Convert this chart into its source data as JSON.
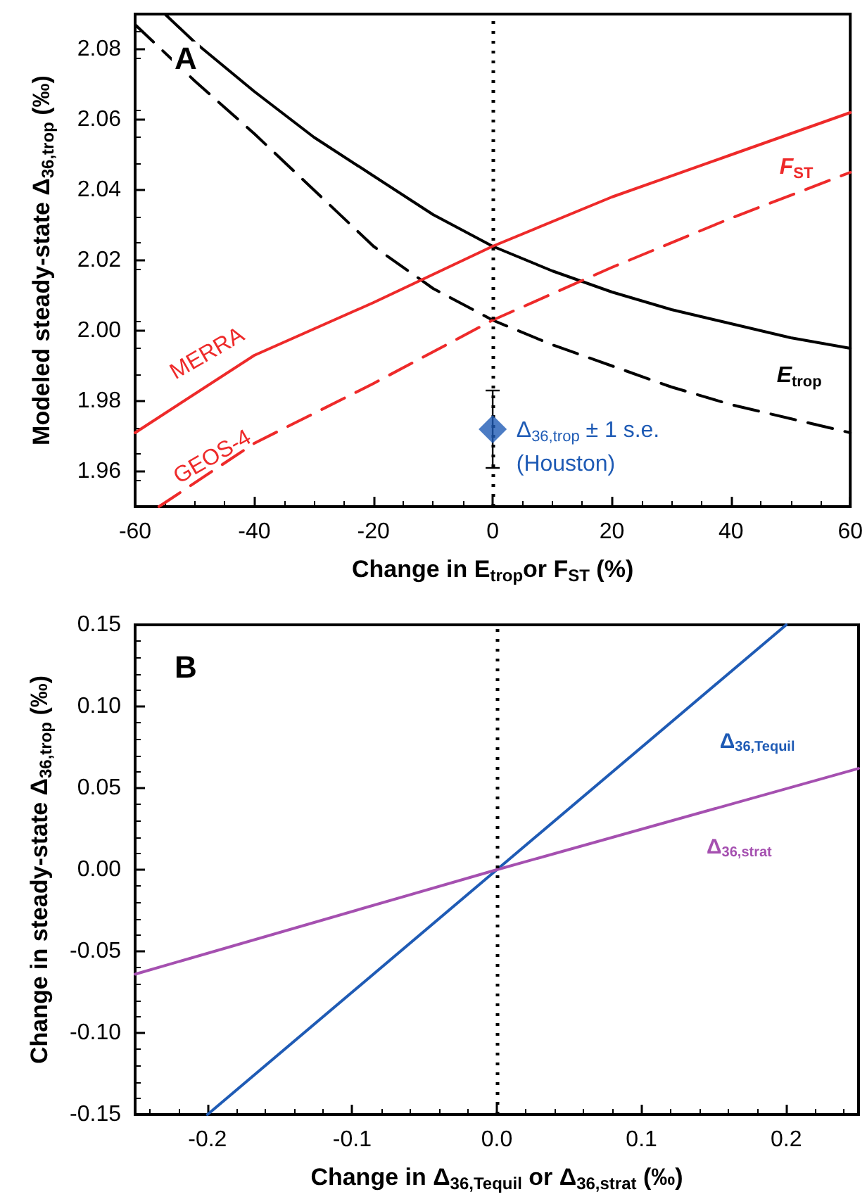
{
  "chart_data": [
    {
      "type": "line",
      "xlabel": "Change in E$_{trop}$or F$_{ST}$ (%)",
      "ylabel": "Modeled steady-state Δ$_{36,trop}$ (‰)",
      "xlim": [
        -60,
        60
      ],
      "xticks": [
        -60,
        -40,
        -20,
        0,
        20,
        40,
        60
      ],
      "ylim": [
        1.95,
        2.09
      ],
      "yticks": [
        1.96,
        1.98,
        {
          "value": 2,
          "label": "2.00"
        },
        2.02,
        2.04,
        2.06,
        2.08
      ],
      "ref_lines": [
        {
          "axis": "x",
          "value": 0,
          "line_style": "dotted",
          "color": "#000000"
        }
      ],
      "series": [
        {
          "color": "#000000",
          "line_style": "solid",
          "x": [
            -55,
            -50,
            -40,
            -30,
            -20,
            -10,
            0,
            10,
            20,
            30,
            40,
            50,
            60
          ],
          "values": [
            2.09,
            2.082,
            2.068,
            2.055,
            2.044,
            2.033,
            2.024,
            2.017,
            2.011,
            2.006,
            2.002,
            1.998,
            1.995
          ]
        },
        {
          "color": "#000000",
          "line_style": "dashed",
          "x": [
            -60,
            -50,
            -40,
            -30,
            -20,
            -10,
            0,
            10,
            20,
            30,
            40,
            50,
            60
          ],
          "values": [
            2.087,
            2.071,
            2.056,
            2.04,
            2.024,
            2.012,
            2.003,
            1.996,
            1.99,
            1.984,
            1.979,
            1.975,
            1.971
          ]
        },
        {
          "color": "#ee2a2a",
          "line_style": "solid",
          "x": [
            -60,
            -40,
            -20,
            0,
            20,
            40,
            60
          ],
          "values": [
            1.971,
            1.993,
            2.008,
            2.024,
            2.038,
            2.05,
            2.062
          ]
        },
        {
          "color": "#ee2a2a",
          "line_style": "dashed",
          "x": [
            -56,
            -40,
            -20,
            0,
            20,
            40,
            60
          ],
          "values": [
            1.95,
            1.968,
            1.985,
            2.003,
            2.018,
            2.032,
            2.045
          ]
        },
        {
          "type": "scatter",
          "color": "#1f5bb5",
          "marker": "diamond",
          "x": [
            0
          ],
          "values": [
            1.972
          ],
          "errors": [
            0.011
          ]
        }
      ],
      "annotations": [
        "A",
        "MERRA",
        "GEOS-4",
        "E$_{trop}$",
        "F$_{ST}$",
        "Δ$_{36,trop}$ ± 1 s.e.",
        "(Houston)"
      ]
    },
    {
      "type": "line",
      "xlabel": "Change in Δ$_{36,Tequil}$ or Δ$_{36,strat}$ (‰)",
      "ylabel": "Change in steady-state Δ$_{36,trop}$ (‰)",
      "xlim": [
        -0.25,
        0.25
      ],
      "xticks": [
        -0.2,
        -0.1,
        {
          "value": 0,
          "label": "0.0"
        },
        0.1,
        0.2
      ],
      "ylim": [
        -0.15,
        0.15
      ],
      "yticks": [
        -0.15,
        {
          "value": -0.1,
          "label": "-0.10"
        },
        -0.05,
        {
          "value": 0,
          "label": "0.00"
        },
        0.05,
        {
          "value": 0.1,
          "label": "0.10"
        },
        0.15
      ],
      "ref_lines": [
        {
          "axis": "x",
          "value": 0,
          "line_style": "dotted",
          "color": "#000000"
        }
      ],
      "series": [
        {
          "color": "#1f5bb5",
          "x": [
            -0.2,
            0,
            0.2
          ],
          "values": [
            -0.15,
            0,
            0.15
          ]
        },
        {
          "color": "#a550b0",
          "x": [
            -0.25,
            0,
            0.25
          ],
          "values": [
            -0.064,
            0,
            0.062
          ]
        }
      ],
      "annotations": [
        "B",
        "Δ$_{36,Tequil}$",
        "Δ$_{36,strat}$"
      ]
    }
  ]
}
